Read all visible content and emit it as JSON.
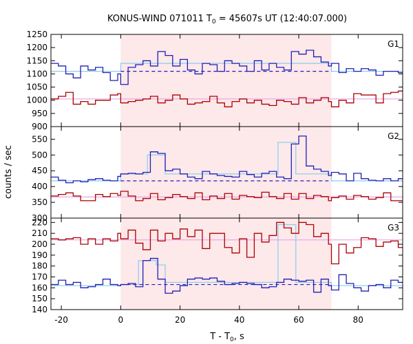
{
  "chart_data": {
    "type": "line",
    "title_prefix": "KONUS-WIND 071011 T",
    "title_sub": "0",
    "title_suffix": " = 45607s UT (12:40:07.000)",
    "xlabel_prefix": "T - T",
    "xlabel_sub": "0",
    "xlabel_suffix": ", s",
    "ylabel": "counts / sec",
    "xlim": [
      -23.5,
      95.0
    ],
    "xticks": [
      -20,
      0,
      20,
      40,
      60,
      80
    ],
    "grid": false,
    "colors": {
      "red": "#aa0000",
      "blue": "#1f1fb4",
      "light_blue": "#87ceeb",
      "pink": "#e9a3e9",
      "shade": "#fde8ea"
    },
    "shaded_interval": [
      0,
      71
    ],
    "panels": [
      {
        "label": "G1",
        "ylim": [
          900,
          1250
        ],
        "yticks": [
          900,
          950,
          1000,
          1050,
          1100,
          1150,
          1200,
          1250
        ],
        "bin_edges": [
          -23.5,
          -21,
          -18.5,
          -16,
          -13.5,
          -11,
          -8.5,
          -6,
          -3.5,
          -1,
          0,
          2.5,
          5,
          7.5,
          10,
          12.5,
          15,
          17.5,
          20,
          22.5,
          25,
          27.5,
          30,
          32.5,
          35,
          37.5,
          40,
          42.5,
          45,
          47.5,
          50,
          52.5,
          55,
          57.5,
          60,
          62.5,
          65,
          67.5,
          70,
          71,
          73.5,
          76,
          78.5,
          81,
          83.5,
          86,
          88.5,
          91,
          93.5,
          95
        ],
        "series": [
          {
            "kind": "blue",
            "values": [
              1140,
              1130,
              1100,
              1085,
              1130,
              1115,
              1125,
              1105,
              1075,
              1100,
              1060,
              1125,
              1135,
              1150,
              1130,
              1185,
              1170,
              1130,
              1155,
              1115,
              1100,
              1140,
              1135,
              1110,
              1150,
              1140,
              1130,
              1110,
              1150,
              1115,
              1140,
              1125,
              1115,
              1185,
              1175,
              1190,
              1165,
              1145,
              1130,
              1140,
              1105,
              1120,
              1110,
              1120,
              1115,
              1095,
              1110,
              1110,
              1105
            ]
          },
          {
            "kind": "red",
            "values": [
              1005,
              1015,
              1030,
              985,
              995,
              985,
              1000,
              1000,
              1020,
              1025,
              990,
              995,
              1000,
              1005,
              1015,
              990,
              1000,
              1020,
              1005,
              985,
              990,
              995,
              1015,
              990,
              975,
              995,
              1005,
              990,
              1000,
              985,
              980,
              1000,
              995,
              985,
              1010,
              990,
              1000,
              1010,
              995,
              975,
              1000,
              990,
              1025,
              1020,
              1020,
              990,
              1025,
              1030,
              1035
            ]
          },
          {
            "kind": "light_blue",
            "segments": [
              [
                -23.5,
                0,
                1110
              ],
              [
                0,
                71,
                1140
              ],
              [
                71,
                95,
                1110
              ]
            ]
          },
          {
            "kind": "pink",
            "segments": [
              [
                -23.5,
                95,
                1005
              ]
            ]
          },
          {
            "kind": "dashed",
            "segments": [
              [
                0,
                71,
                1110
              ]
            ]
          }
        ]
      },
      {
        "label": "G2",
        "ylim": [
          300,
          590
        ],
        "yticks": [
          300,
          350,
          400,
          450,
          500,
          550
        ],
        "bin_edges": [
          -23.5,
          -21,
          -18.5,
          -16,
          -13.5,
          -11,
          -8.5,
          -6,
          -3.5,
          -1,
          0,
          2.5,
          5,
          7.5,
          10,
          12.5,
          15,
          17.5,
          20,
          22.5,
          25,
          27.5,
          30,
          32.5,
          35,
          37.5,
          40,
          42.5,
          45,
          47.5,
          50,
          52.5,
          55,
          57.5,
          60,
          62.5,
          65,
          67.5,
          70,
          71,
          73.5,
          76,
          78.5,
          81,
          83.5,
          86,
          88.5,
          91,
          93.5,
          95
        ],
        "series": [
          {
            "kind": "blue",
            "values": [
              430,
              420,
              412,
              418,
              415,
              422,
              425,
              420,
              418,
              432,
              440,
              442,
              440,
              445,
              510,
              505,
              450,
              455,
              440,
              430,
              425,
              448,
              440,
              435,
              432,
              430,
              448,
              438,
              430,
              442,
              448,
              430,
              425,
              535,
              560,
              465,
              455,
              448,
              435,
              445,
              440,
              418,
              442,
              425,
              420,
              418,
              425,
              418,
              425
            ]
          },
          {
            "kind": "red",
            "values": [
              370,
              375,
              380,
              370,
              355,
              355,
              375,
              368,
              378,
              372,
              385,
              370,
              355,
              362,
              378,
              358,
              365,
              375,
              368,
              362,
              380,
              358,
              370,
              362,
              378,
              360,
              372,
              368,
              365,
              382,
              368,
              362,
              378,
              360,
              378,
              362,
              372,
              368,
              355,
              365,
              370,
              360,
              372,
              368,
              360,
              365,
              380,
              355,
              355
            ]
          },
          {
            "kind": "light_blue",
            "segments": [
              [
                -23.5,
                0,
                418
              ],
              [
                0,
                5,
                440
              ],
              [
                5,
                9,
                440
              ],
              [
                9,
                15,
                500
              ],
              [
                15,
                53,
                440
              ],
              [
                53,
                59,
                540
              ],
              [
                59,
                71,
                440
              ],
              [
                71,
                95,
                418
              ]
            ]
          },
          {
            "kind": "pink",
            "segments": [
              [
                -23.5,
                95,
                367
              ]
            ]
          },
          {
            "kind": "dashed",
            "segments": [
              [
                0,
                71,
                418
              ]
            ]
          }
        ]
      },
      {
        "label": "G3",
        "ylim": [
          140,
          224
        ],
        "yticks": [
          140,
          150,
          160,
          170,
          180,
          190,
          200,
          210,
          220
        ],
        "bin_edges": [
          -23.5,
          -21,
          -18.5,
          -16,
          -13.5,
          -11,
          -8.5,
          -6,
          -3.5,
          -1,
          0,
          2.5,
          5,
          7.5,
          10,
          12.5,
          15,
          17.5,
          20,
          22.5,
          25,
          27.5,
          30,
          32.5,
          35,
          37.5,
          40,
          42.5,
          45,
          47.5,
          50,
          52.5,
          55,
          57.5,
          60,
          62.5,
          65,
          67.5,
          70,
          71,
          73.5,
          76,
          78.5,
          81,
          83.5,
          86,
          88.5,
          91,
          93.5,
          95
        ],
        "series": [
          {
            "kind": "blue",
            "values": [
              163,
              167,
              163,
              165,
              160,
              161,
              163,
              168,
              163,
              162,
              163,
              164,
              161,
              185,
              187,
              168,
              155,
              157,
              162,
              168,
              169,
              168,
              169,
              166,
              163,
              164,
              165,
              164,
              163,
              160,
              161,
              165,
              168,
              167,
              166,
              167,
              156,
              168,
              162,
              158,
              172,
              164,
              160,
              157,
              162,
              163,
              160,
              167,
              165
            ]
          },
          {
            "kind": "red",
            "values": [
              205,
              204,
              205,
              206,
              200,
              205,
              200,
              205,
              203,
              210,
              205,
              213,
              201,
              195,
              213,
              203,
              210,
              205,
              214,
              207,
              213,
              196,
              210,
              210,
              197,
              192,
              205,
              188,
              210,
              202,
              208,
              220,
              215,
              210,
              220,
              218,
              207,
              210,
              200,
              182,
              200,
              192,
              197,
              206,
              205,
              198,
              202,
              203,
              197
            ]
          },
          {
            "kind": "light_blue",
            "segments": [
              [
                -23.5,
                0,
                162
              ],
              [
                0,
                6,
                163
              ],
              [
                6,
                12,
                185
              ],
              [
                12,
                15,
                181
              ],
              [
                15,
                53,
                165
              ],
              [
                53,
                59,
                218
              ],
              [
                59,
                71,
                165
              ],
              [
                71,
                95,
                162
              ]
            ]
          },
          {
            "kind": "pink",
            "segments": [
              [
                -23.5,
                95,
                204
              ]
            ]
          },
          {
            "kind": "dashed",
            "segments": [
              [
                0,
                71,
                163
              ]
            ]
          }
        ]
      }
    ]
  }
}
